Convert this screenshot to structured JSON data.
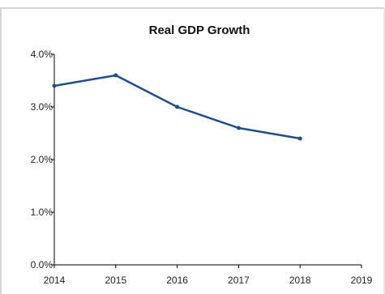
{
  "chart_data": {
    "type": "line",
    "title": "Real GDP Growth",
    "xlabel": "",
    "ylabel": "",
    "x": [
      "2014",
      "2015",
      "2016",
      "2017",
      "2018",
      "2019"
    ],
    "series": [
      {
        "x": [
          "2014",
          "2015",
          "2016",
          "2017",
          "2018"
        ],
        "values": [
          3.4,
          3.6,
          3.0,
          2.6,
          2.4
        ]
      }
    ],
    "xlim": [
      "2014",
      "2019"
    ],
    "ylim": [
      0,
      4.0
    ],
    "yticks": [
      "0.0%",
      "1.0%",
      "2.0%",
      "3.0%",
      "4.0%"
    ],
    "ytick_values": [
      0,
      1,
      2,
      3,
      4
    ],
    "grid": false,
    "line_color": "#1f4e8c"
  }
}
